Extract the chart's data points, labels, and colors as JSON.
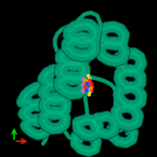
{
  "background_color": "#000000",
  "figure_size": [
    2.0,
    2.0
  ],
  "dpi": 100,
  "protein_color": "#009970",
  "protein_dark": "#006644",
  "protein_highlight": "#00bb88",
  "axis_x_color": "#cc2200",
  "axis_y_color": "#00cc00",
  "ligand_yellow": "#ccdd44",
  "ligand_pink": "#cc66bb",
  "ligand_red": "#ff2200",
  "ligand_blue": "#2244ff",
  "ligand_orange": "#ff8800"
}
